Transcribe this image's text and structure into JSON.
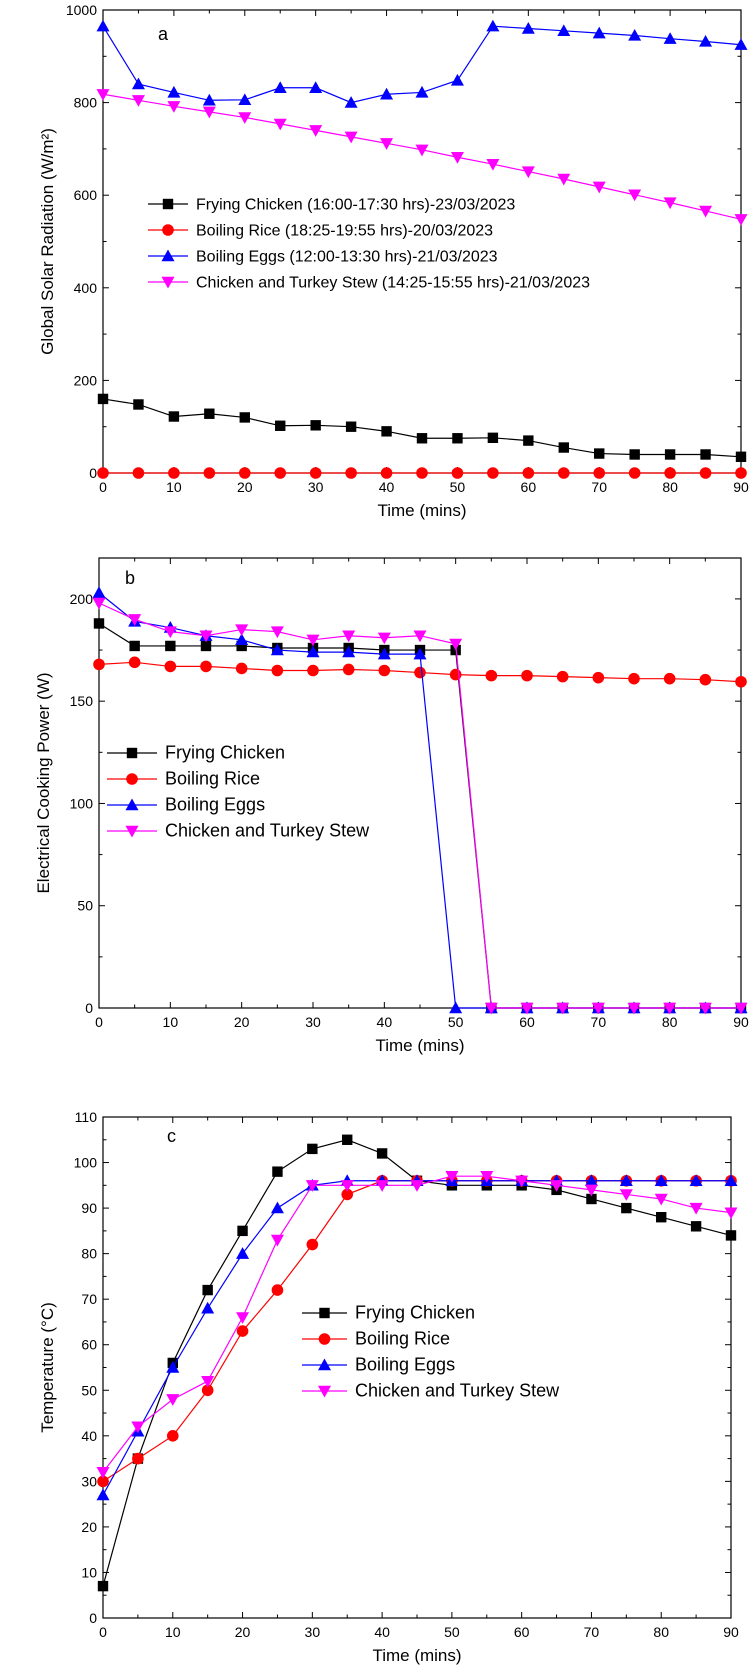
{
  "chart_data": [
    {
      "type": "line",
      "panel_label": "a",
      "xlabel": "Time (mins)",
      "ylabel": "Global Solar Radiation (W/m²)",
      "xlim": [
        0,
        90
      ],
      "ylim": [
        0,
        1000
      ],
      "xticks": [
        0,
        10,
        20,
        30,
        40,
        50,
        60,
        70,
        80,
        90
      ],
      "yticks": [
        0,
        200,
        400,
        600,
        800,
        1000
      ],
      "legend_position": "center-left",
      "series": [
        {
          "name": "Frying Chicken (16:00-17:30 hrs)-23/03/2023",
          "color": "#000000",
          "marker": "square",
          "x": [
            0,
            5,
            10,
            15,
            20,
            25,
            30,
            35,
            40,
            45,
            50,
            55,
            60,
            65,
            70,
            75,
            80,
            85,
            90
          ],
          "y": [
            160,
            148,
            122,
            128,
            120,
            102,
            103,
            100,
            90,
            75,
            75,
            76,
            70,
            55,
            42,
            40,
            40,
            40,
            35
          ]
        },
        {
          "name": "Boiling Rice (18:25-19:55 hrs)-20/03/2023",
          "color": "#ff0000",
          "marker": "circle",
          "x": [
            0,
            5,
            10,
            15,
            20,
            25,
            30,
            35,
            40,
            45,
            50,
            55,
            60,
            65,
            70,
            75,
            80,
            85,
            90
          ],
          "y": [
            0,
            0,
            0,
            0,
            0,
            0,
            0,
            0,
            0,
            0,
            0,
            0,
            0,
            0,
            0,
            0,
            0,
            0,
            0
          ]
        },
        {
          "name": "Boiling Eggs (12:00-13:30 hrs)-21/03/2023",
          "color": "#0000ff",
          "marker": "triangle-up",
          "x": [
            0,
            5,
            10,
            15,
            20,
            25,
            30,
            35,
            40,
            45,
            50,
            55,
            60,
            65,
            70,
            75,
            80,
            85,
            90
          ],
          "y": [
            965,
            840,
            822,
            805,
            806,
            832,
            832,
            800,
            818,
            822,
            848,
            965,
            960,
            955,
            950,
            945,
            938,
            932,
            925
          ]
        },
        {
          "name": "Chicken and Turkey Stew (14:25-15:55 hrs)-21/03/2023",
          "color": "#ff00ff",
          "marker": "triangle-down",
          "x": [
            0,
            5,
            10,
            15,
            20,
            25,
            30,
            35,
            40,
            45,
            50,
            55,
            60,
            65,
            70,
            75,
            80,
            85,
            90
          ],
          "y": [
            818,
            805,
            792,
            780,
            768,
            754,
            740,
            726,
            712,
            698,
            682,
            667,
            651,
            635,
            618,
            601,
            584,
            566,
            548
          ]
        }
      ]
    },
    {
      "type": "line",
      "panel_label": "b",
      "xlabel": "Time (mins)",
      "ylabel": "Electrical Cooking Power (W)",
      "xlim": [
        0,
        90
      ],
      "ylim": [
        0,
        220
      ],
      "xticks": [
        0,
        10,
        20,
        30,
        40,
        50,
        60,
        70,
        80,
        90
      ],
      "yticks": [
        0,
        50,
        100,
        150,
        200
      ],
      "legend_position": "center-left",
      "series": [
        {
          "name": "Frying Chicken",
          "color": "#000000",
          "marker": "square",
          "x": [
            0,
            5,
            10,
            15,
            20,
            25,
            30,
            35,
            40,
            45,
            50,
            55,
            60,
            65,
            70,
            75,
            80,
            85,
            90
          ],
          "y": [
            188,
            177,
            177,
            177,
            177,
            176,
            176,
            176,
            175,
            175,
            175,
            0,
            0,
            0,
            0,
            0,
            0,
            0,
            0
          ]
        },
        {
          "name": "Boiling Rice",
          "color": "#ff0000",
          "marker": "circle",
          "x": [
            0,
            5,
            10,
            15,
            20,
            25,
            30,
            35,
            40,
            45,
            50,
            55,
            60,
            65,
            70,
            75,
            80,
            85,
            90
          ],
          "y": [
            168,
            169,
            167,
            167,
            166,
            165,
            165,
            165.5,
            165,
            164,
            163,
            162.5,
            162.5,
            162,
            161.5,
            161,
            161,
            160.5,
            159.5
          ]
        },
        {
          "name": "Boiling Eggs",
          "color": "#0000ff",
          "marker": "triangle-up",
          "x": [
            0,
            5,
            10,
            15,
            20,
            25,
            30,
            35,
            40,
            45,
            50,
            55,
            60,
            65,
            70,
            75,
            80,
            85,
            90
          ],
          "y": [
            203,
            189,
            186,
            182,
            180,
            175,
            174,
            174,
            173,
            173,
            0,
            0,
            0,
            0,
            0,
            0,
            0,
            0,
            0
          ]
        },
        {
          "name": "Chicken and Turkey Stew",
          "color": "#ff00ff",
          "marker": "triangle-down",
          "x": [
            0,
            5,
            10,
            15,
            20,
            25,
            30,
            35,
            40,
            45,
            50,
            55,
            60,
            65,
            70,
            75,
            80,
            85,
            90
          ],
          "y": [
            198,
            190,
            184,
            182,
            185,
            184,
            180,
            182,
            181,
            182,
            178,
            0,
            0,
            0,
            0,
            0,
            0,
            0,
            0
          ]
        }
      ]
    },
    {
      "type": "line",
      "panel_label": "c",
      "xlabel": "Time (mins)",
      "ylabel": "Temperature (°C)",
      "xlim": [
        0,
        90
      ],
      "ylim": [
        0,
        110
      ],
      "xticks": [
        0,
        10,
        20,
        30,
        40,
        50,
        60,
        70,
        80,
        90
      ],
      "yticks": [
        0,
        10,
        20,
        30,
        40,
        50,
        60,
        70,
        80,
        90,
        100,
        110
      ],
      "legend_position": "center",
      "series": [
        {
          "name": "Frying Chicken",
          "color": "#000000",
          "marker": "square",
          "x": [
            0,
            5,
            10,
            15,
            20,
            25,
            30,
            35,
            40,
            45,
            50,
            55,
            60,
            65,
            70,
            75,
            80,
            85,
            90
          ],
          "y": [
            7,
            35,
            56,
            72,
            85,
            98,
            103,
            105,
            102,
            96,
            95,
            95,
            95,
            94,
            92,
            90,
            88,
            86,
            84
          ]
        },
        {
          "name": "Boiling Rice",
          "color": "#ff0000",
          "marker": "circle",
          "x": [
            0,
            5,
            10,
            15,
            20,
            25,
            30,
            35,
            40,
            45,
            50,
            55,
            60,
            65,
            70,
            75,
            80,
            85,
            90
          ],
          "y": [
            30,
            35,
            40,
            50,
            63,
            72,
            82,
            93,
            96,
            96,
            96,
            96,
            96,
            96,
            96,
            96,
            96,
            96,
            96
          ]
        },
        {
          "name": "Boiling Eggs",
          "color": "#0000ff",
          "marker": "triangle-up",
          "x": [
            0,
            5,
            10,
            15,
            20,
            25,
            30,
            35,
            40,
            45,
            50,
            55,
            60,
            65,
            70,
            75,
            80,
            85,
            90
          ],
          "y": [
            27,
            41,
            55,
            68,
            80,
            90,
            95,
            96,
            96,
            96,
            96,
            96,
            96,
            96,
            96,
            96,
            96,
            96,
            96
          ]
        },
        {
          "name": "Chicken and Turkey Stew",
          "color": "#ff00ff",
          "marker": "triangle-down",
          "x": [
            0,
            5,
            10,
            15,
            20,
            25,
            30,
            35,
            40,
            45,
            50,
            55,
            60,
            65,
            70,
            75,
            80,
            85,
            90
          ],
          "y": [
            32,
            42,
            48,
            52,
            66,
            83,
            95,
            95,
            95,
            95,
            97,
            97,
            96,
            95,
            94,
            93,
            92,
            90,
            89
          ]
        }
      ]
    }
  ]
}
